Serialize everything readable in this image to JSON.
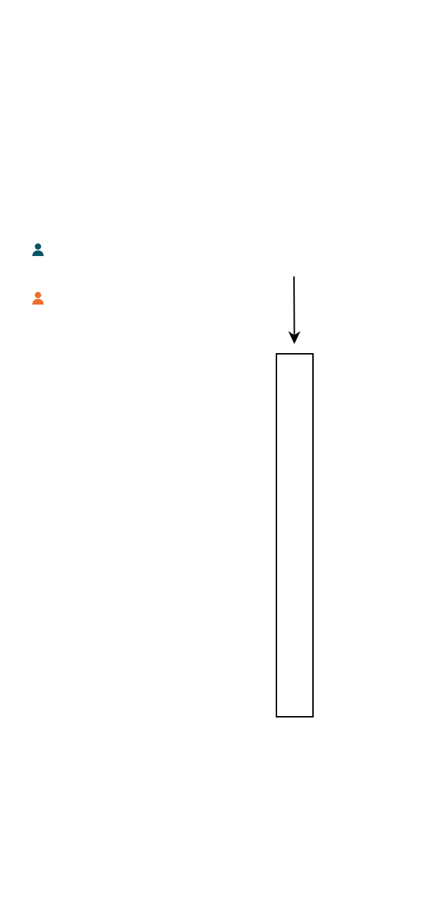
{
  "legend": {
    "items": [
      {
        "icon": "person-icon",
        "color": "#0b5468"
      },
      {
        "icon": "person-icon",
        "color": "#ef6c2a"
      }
    ]
  },
  "diagram": {
    "stroke_color": "#000000",
    "box_fill": "#ffffff"
  }
}
